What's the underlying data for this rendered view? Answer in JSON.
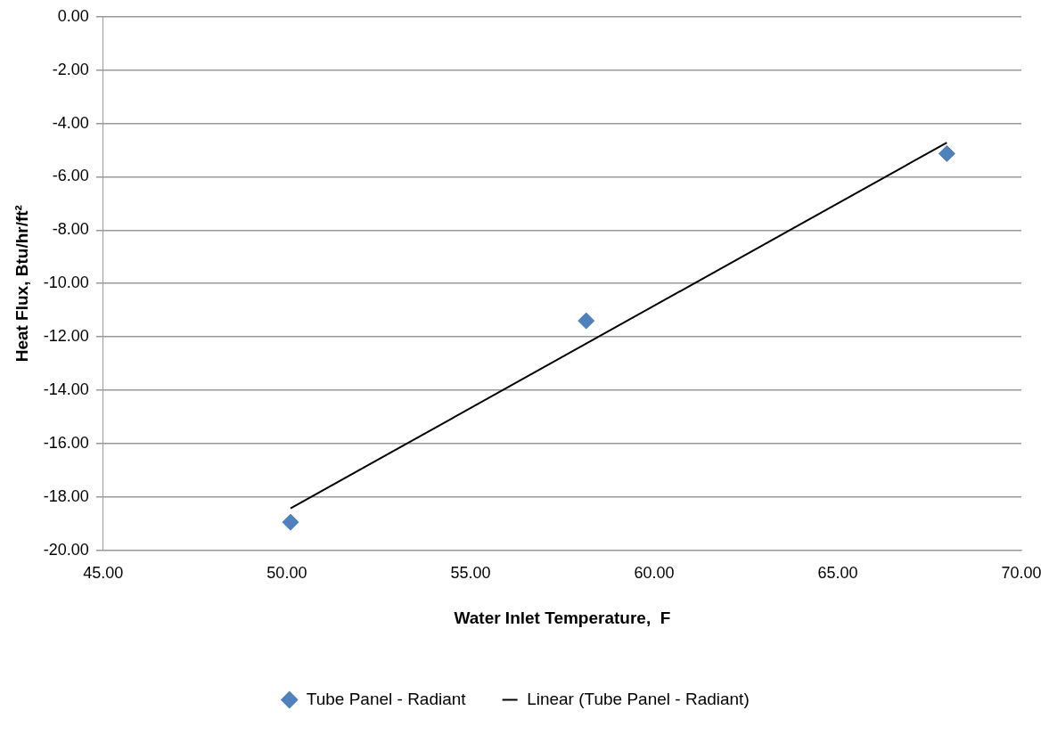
{
  "chart_data": {
    "type": "scatter",
    "xlabel": "Water Inlet Temperature,  F",
    "ylabel": "Heat Flux, Btu/hr/ft²",
    "series": [
      {
        "name": "Tube Panel - Radiant",
        "color": "#4f81bd",
        "marker": "diamond",
        "x": [
          50.1,
          58.15,
          67.97
        ],
        "values": [
          -18.95,
          -11.4,
          -5.13
        ]
      },
      {
        "name": "Linear (Tube Panel - Radiant)",
        "type": "line",
        "color": "#000000",
        "marker": "none",
        "line_style": "solid",
        "x": [
          50.1,
          67.97
        ],
        "values": [
          -18.43,
          -4.72
        ]
      }
    ],
    "xlim": [
      45,
      70
    ],
    "xticks": [
      {
        "value": 45,
        "label": "45.00"
      },
      {
        "value": 50,
        "label": "50.00"
      },
      {
        "value": 55,
        "label": "55.00"
      },
      {
        "value": 60,
        "label": "60.00"
      },
      {
        "value": 65,
        "label": "65.00"
      },
      {
        "value": 70,
        "label": "70.00"
      }
    ],
    "ylim": [
      -20,
      0
    ],
    "yticks": [
      {
        "value": -20,
        "label": "-20.00"
      },
      {
        "value": -18,
        "label": "-18.00"
      },
      {
        "value": -16,
        "label": "-16.00"
      },
      {
        "value": -14,
        "label": "-14.00"
      },
      {
        "value": -12,
        "label": "-12.00"
      },
      {
        "value": -10,
        "label": "-10.00"
      },
      {
        "value": -8,
        "label": "-8.00"
      },
      {
        "value": -6,
        "label": "-6.00"
      },
      {
        "value": -4,
        "label": "-4.00"
      },
      {
        "value": -2,
        "label": "-2.00"
      },
      {
        "value": 0,
        "label": "0.00"
      }
    ],
    "grid": "y",
    "legend": "bottom"
  }
}
